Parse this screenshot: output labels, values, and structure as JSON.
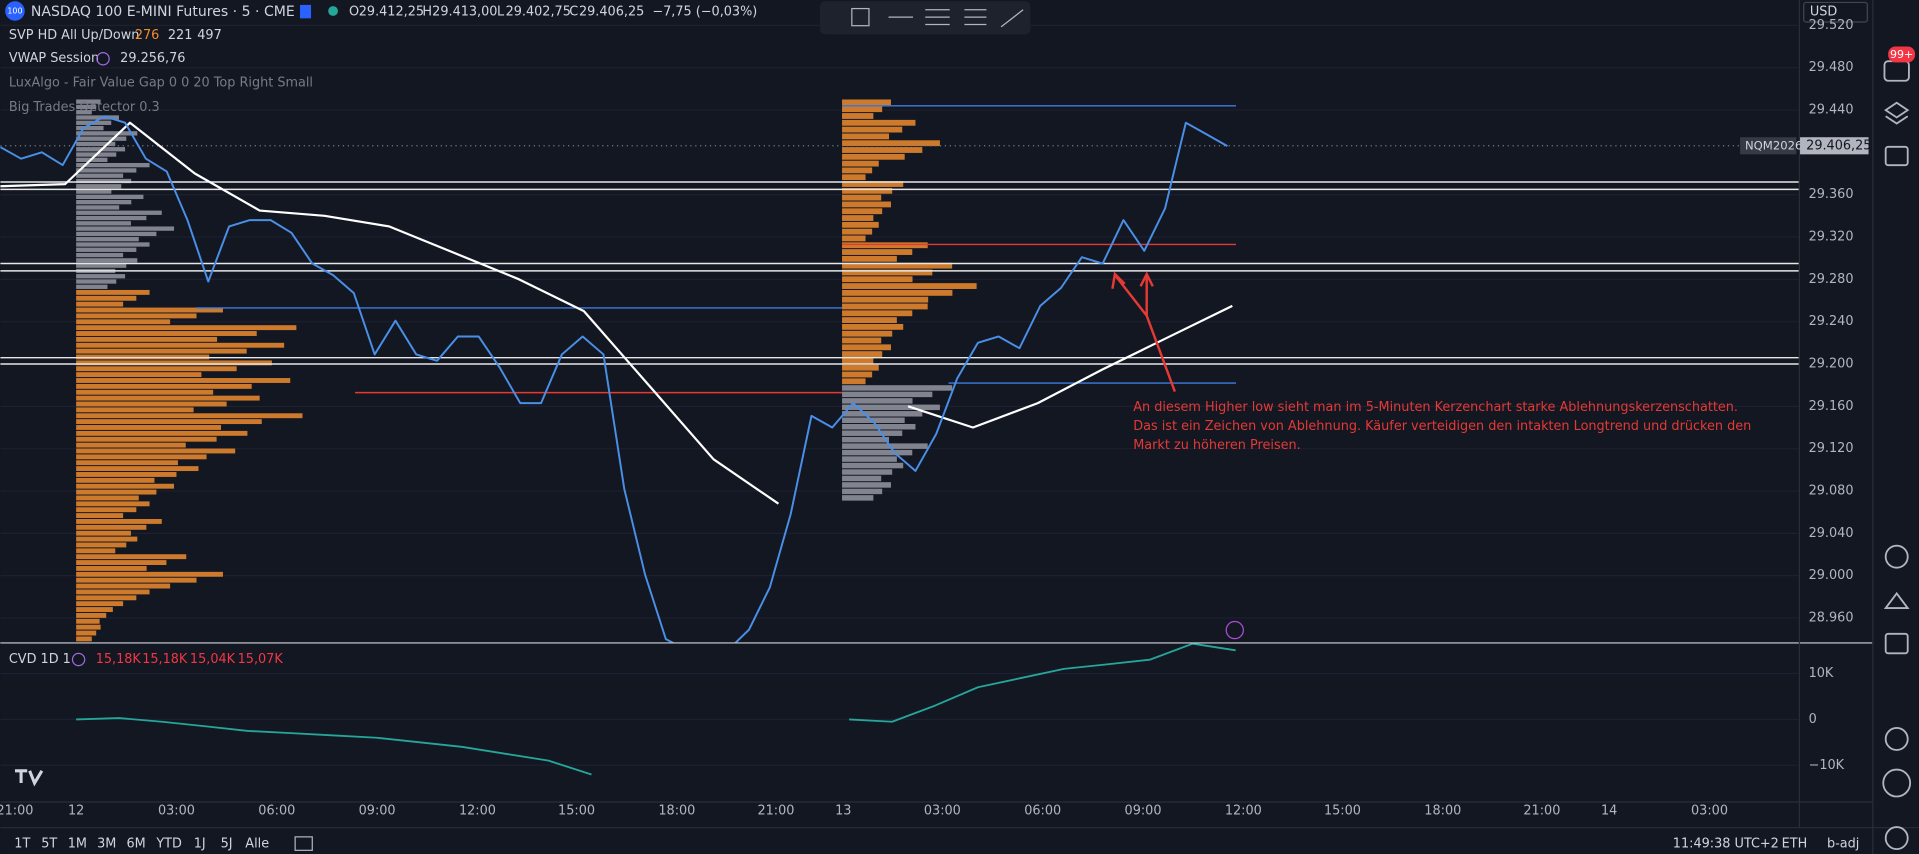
{
  "header": {
    "logo": "100",
    "symbol": "NASDAQ 100 E-MINI Futures · 5 · CME",
    "ohlc": [
      {
        "label": "O",
        "value": "29.412,25"
      },
      {
        "label": "H",
        "value": "29.413,00"
      },
      {
        "label": "L",
        "value": "29.402,75"
      },
      {
        "label": "C",
        "value": "29.406,25"
      }
    ],
    "change": "−7,75 (−0,03%)"
  },
  "indicators": [
    {
      "name": "SVP HD All Up/Down",
      "values": [
        "276",
        "221",
        "497"
      ]
    },
    {
      "name": "VWAP Session",
      "values": [
        "29.256,76"
      ]
    },
    {
      "name": "LuxAlgo - Fair Value Gap 0 0 20 Top Right Small"
    },
    {
      "name": "Big Trades Detector 0.3"
    }
  ],
  "price_pane": {
    "ylim": [
      28937,
      29544
    ],
    "yticks": [
      {
        "value": 29520,
        "label": "29.520"
      },
      {
        "value": 29480,
        "label": "29.480"
      },
      {
        "value": 29440,
        "label": "29.440"
      },
      {
        "value": 29360,
        "label": "29.360"
      },
      {
        "value": 29320,
        "label": "29.320"
      },
      {
        "value": 29280,
        "label": "29.280"
      },
      {
        "value": 29240,
        "label": "29.240"
      },
      {
        "value": 29200,
        "label": "29.200"
      },
      {
        "value": 29160,
        "label": "29.160"
      },
      {
        "value": 29120,
        "label": "29.120"
      },
      {
        "value": 29080,
        "label": "29.080"
      },
      {
        "value": 29040,
        "label": "29.040"
      },
      {
        "value": 29000,
        "label": "29.000"
      },
      {
        "value": 28960,
        "label": "28.960"
      }
    ],
    "price_line": {
      "color": "#4a8fe7",
      "values": [
        29405,
        29394,
        29400,
        29388,
        29423,
        29434,
        29428,
        29394,
        29382,
        29336,
        29278,
        29330,
        29336,
        29336,
        29324,
        29295,
        29284,
        29267,
        29209,
        29241,
        29209,
        29203,
        29226,
        29226,
        29197,
        29163,
        29163,
        29209,
        29226,
        29209,
        29082,
        29001,
        28940,
        28930,
        28930,
        28930,
        28949,
        28989,
        29058,
        29151,
        29140,
        29163,
        29145,
        29116,
        29099,
        29134,
        29186,
        29220,
        29226,
        29215,
        29255,
        29272,
        29301,
        29295,
        29336,
        29307,
        29347,
        29428,
        29417,
        29406
      ]
    },
    "vwap": {
      "color": "#ffffff",
      "values": [
        29368,
        29370,
        29428,
        29380,
        29345,
        29340,
        29330,
        29305,
        29280,
        29250,
        29180,
        29110,
        29068,
        null,
        29160,
        29140,
        29163,
        29195,
        29225,
        29255
      ]
    },
    "levels": [
      {
        "value": 29444,
        "color": "#3d7be0"
      },
      {
        "value": 29372,
        "color": "#e6e6e6"
      },
      {
        "value": 29365,
        "color": "#e6e6e6"
      },
      {
        "value": 29313,
        "color": "#e53935"
      },
      {
        "value": 29295,
        "color": "#e6e6e6"
      },
      {
        "value": 29288,
        "color": "#e6e6e6"
      },
      {
        "value": 29253,
        "color": "#3d7be0"
      },
      {
        "value": 29206,
        "color": "#e6e6e6"
      },
      {
        "value": 29200,
        "color": "#e6e6e6"
      },
      {
        "value": 29182,
        "color": "#3d7be0"
      },
      {
        "value": 29173,
        "color": "#e53935"
      }
    ],
    "profiles": [
      {
        "color": "#9598a1",
        "range": [
          29270,
          29450
        ],
        "volumes": [
          20,
          35,
          50,
          40,
          60,
          45,
          55,
          70,
          80,
          60,
          50,
          40
        ]
      },
      {
        "color": "#f08c2e",
        "range": [
          28937,
          29270
        ],
        "volumes": [
          60,
          120,
          180,
          170,
          160,
          175,
          150,
          185,
          140,
          130,
          100,
          80,
          60,
          70,
          50,
          90,
          120,
          60,
          30,
          20
        ]
      },
      {
        "color": "#f08c2e",
        "range": [
          29180,
          29450
        ],
        "volumes": [
          40,
          60,
          80,
          30,
          50,
          40,
          30,
          70,
          90,
          110,
          70,
          50,
          40,
          30
        ]
      },
      {
        "color": "#9598a1",
        "range": [
          29070,
          29180
        ],
        "volumes": [
          90,
          80,
          60,
          70,
          50,
          40
        ]
      }
    ],
    "last_price": {
      "symbol": "NQM2026",
      "value": 29406.25,
      "label": "29.406,25"
    },
    "annotation": {
      "color": "#e53935",
      "lines": [
        "An diesem Higher low sieht man im 5-Minuten Kerzenchart starke Ablehnungskerzenschatten.",
        "Das ist ein Zeichen von Ablehnung. Käufer verteidigen den intakten Longtrend und drücken den",
        "Markt zu höheren Preisen."
      ]
    }
  },
  "cvd_pane": {
    "title": "CVD 1D 1",
    "values_text": [
      "15,18K",
      "15,18K",
      "15,04K",
      "15,07K"
    ],
    "ylim": [
      -17867,
      16533
    ],
    "yticks": [
      {
        "value": 10000,
        "label": "10K"
      },
      0,
      {
        "value": -10000,
        "label": "−10K"
      }
    ],
    "series": [
      {
        "color": "#26a69a",
        "values": [
          0,
          300,
          -500,
          -1500,
          -2500,
          -3000,
          -3500,
          -4000,
          -5000,
          -6000,
          -7500,
          -9000,
          -12000,
          null,
          null,
          null,
          null,
          null,
          0,
          -500,
          3000,
          7000,
          9000,
          11000,
          12000,
          13000,
          16500,
          15070
        ]
      }
    ]
  },
  "time_axis": {
    "labels": [
      "21:00",
      "12",
      "03:00",
      "06:00",
      "09:00",
      "12:00",
      "15:00",
      "18:00",
      "21:00",
      "13",
      "03:00",
      "06:00",
      "09:00",
      "12:00",
      "15:00",
      "18:00",
      "21:00",
      "14",
      "03:00"
    ]
  },
  "currency": "USD",
  "notifications": "99+",
  "bottom_bar": {
    "ranges": [
      "1T",
      "5T",
      "1M",
      "3M",
      "6M",
      "YTD",
      "1J",
      "5J",
      "Alle"
    ],
    "clock": "11:49:38 UTC+2",
    "session": "ETH",
    "adjust": "b-adj"
  }
}
